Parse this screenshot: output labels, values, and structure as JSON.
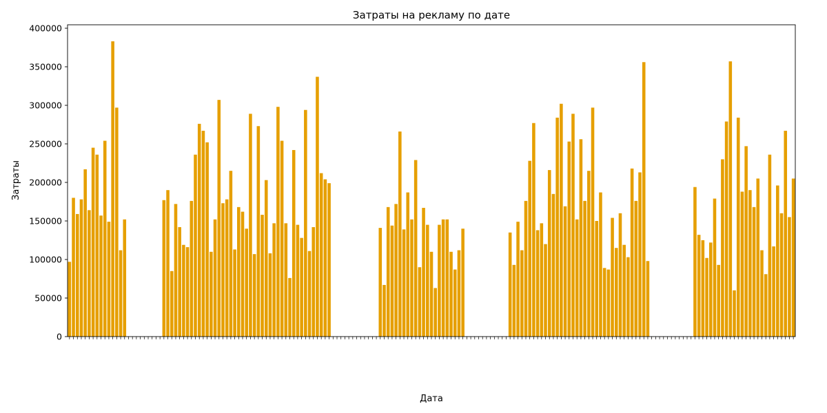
{
  "chart_data": {
    "type": "bar",
    "title": "Затраты на рекламу по дате",
    "xlabel": "Дата",
    "ylabel": "Затраты",
    "ylim": [
      0,
      400000
    ],
    "yticks": [
      0,
      50000,
      100000,
      150000,
      200000,
      250000,
      300000,
      350000,
      400000
    ],
    "grid": false,
    "bar_color": "#e69f00",
    "values": [
      97000,
      180000,
      159000,
      178000,
      217000,
      164000,
      245000,
      236000,
      157000,
      254000,
      149000,
      383000,
      297000,
      112000,
      152000,
      0,
      0,
      0,
      0,
      0,
      0,
      0,
      0,
      0,
      177000,
      190000,
      85000,
      172000,
      142000,
      119000,
      116000,
      176000,
      236000,
      276000,
      267000,
      252000,
      110000,
      152000,
      307000,
      173000,
      178000,
      215000,
      113000,
      168000,
      162000,
      140000,
      289000,
      107000,
      273000,
      158000,
      203000,
      108000,
      147000,
      298000,
      254000,
      147000,
      76000,
      242000,
      145000,
      128000,
      294000,
      111000,
      142000,
      337000,
      212000,
      204000,
      199000,
      0,
      0,
      0,
      0,
      0,
      0,
      0,
      0,
      0,
      0,
      0,
      0,
      141000,
      67000,
      168000,
      144000,
      172000,
      266000,
      139000,
      187000,
      152000,
      229000,
      90000,
      167000,
      145000,
      110000,
      63000,
      145000,
      152000,
      152000,
      110000,
      87000,
      112000,
      140000,
      0,
      0,
      0,
      0,
      0,
      0,
      0,
      0,
      0,
      0,
      0,
      135000,
      93000,
      149000,
      112000,
      176000,
      228000,
      277000,
      138000,
      147000,
      120000,
      216000,
      185000,
      284000,
      302000,
      169000,
      253000,
      289000,
      152000,
      256000,
      176000,
      215000,
      297000,
      150000,
      187000,
      89000,
      87000,
      154000,
      115000,
      160000,
      119000,
      103000,
      218000,
      176000,
      213000,
      356000,
      98000,
      0,
      0,
      0,
      0,
      0,
      0,
      0,
      0,
      0,
      0,
      0,
      194000,
      132000,
      125000,
      102000,
      122000,
      179000,
      93000,
      230000,
      279000,
      357000,
      60000,
      284000,
      188000,
      247000,
      190000,
      168000,
      205000,
      112000,
      81000,
      236000,
      117000,
      196000,
      160000,
      267000,
      155000,
      205000
    ]
  }
}
